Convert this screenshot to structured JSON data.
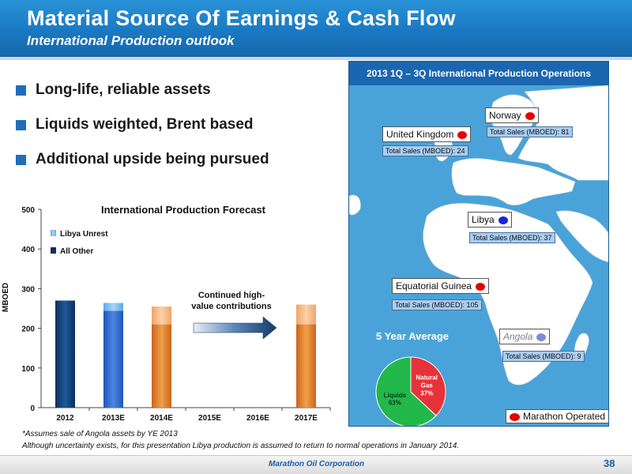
{
  "header": {
    "title": "Material Source Of Earnings & Cash Flow",
    "subtitle": "International Production outlook"
  },
  "bullets": [
    "Long-life, reliable assets",
    "Liquids weighted, Brent based",
    "Additional upside being pursued"
  ],
  "chart_data": [
    {
      "type": "bar",
      "title": "International Production Forecast",
      "ylabel": "MBOED",
      "xlabel": "",
      "ylim": [
        0,
        500
      ],
      "yticks": [
        0,
        100,
        200,
        300,
        400,
        500
      ],
      "categories": [
        "2012",
        "2013E",
        "2014E",
        "2015E",
        "2016E",
        "2017E"
      ],
      "series": [
        {
          "name": "All Other",
          "values": [
            270,
            244,
            210,
            null,
            null,
            210
          ]
        },
        {
          "name": "Libya Unrest",
          "values": [
            0,
            20,
            45,
            null,
            null,
            50
          ]
        }
      ],
      "annotation": "Continued high-value contributions",
      "legend_position": "top-left",
      "stacked": true
    },
    {
      "type": "pie",
      "title": "5 Year Average",
      "labels": [
        "Liquids",
        "Natural Gas"
      ],
      "values": [
        63,
        37
      ],
      "value_labels": [
        "63%",
        "37%"
      ]
    }
  ],
  "map": {
    "title": "2013 1Q – 3Q International Production Operations",
    "sales_prefix": "Total Sales (MBOED):",
    "countries": [
      {
        "name": "Norway",
        "sales": "81",
        "marker": "red"
      },
      {
        "name": "United Kingdom",
        "sales": "24",
        "marker": "red"
      },
      {
        "name": "Libya",
        "sales": "37",
        "marker": "blue"
      },
      {
        "name": "Equatorial Guinea",
        "sales": "105",
        "marker": "red"
      },
      {
        "name": "Angola",
        "sales": "9",
        "marker": "light-blue"
      }
    ],
    "legend": "Marathon Operated",
    "colors": {
      "operated": "#e60000",
      "non_operated": "#1c24d8",
      "angola": "#7c8bd8"
    }
  },
  "footnotes": {
    "note1": "*Assumes sale of Angola assets by YE 2013",
    "note2": "Although uncertainty exists, for this presentation Libya production is assumed to return to normal operations in January 2014."
  },
  "footer": {
    "company": "Marathon Oil Corporation",
    "page": "38"
  }
}
